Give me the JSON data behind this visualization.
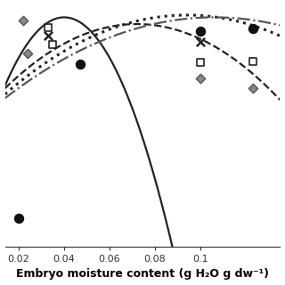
{
  "xlabel": "Embryo moisture content (g H₂O g dw⁻¹)",
  "xlim": [
    0.014,
    0.135
  ],
  "ylim": [
    -1.1,
    1.05
  ],
  "x_ticks": [
    0.02,
    0.04,
    0.06,
    0.08,
    0.1
  ],
  "x_tick_labels": [
    "0.02",
    "0.04",
    "0.06",
    "0.08",
    "0.1"
  ],
  "curves": [
    {
      "style": "-",
      "a": -900,
      "b": 0.04,
      "c": 0.94,
      "color": "#222222",
      "lw": 1.6
    },
    {
      "style": "--",
      "a": -170,
      "b": 0.072,
      "c": 0.88,
      "color": "#222222",
      "lw": 1.6
    },
    {
      "style": ":",
      "a": -110,
      "b": 0.094,
      "c": 0.96,
      "color": "#222222",
      "lw": 2.2
    },
    {
      "style": "-.",
      "a": -85,
      "b": 0.106,
      "c": 0.94,
      "color": "#555555",
      "lw": 1.6
    }
  ],
  "scatter": [
    {
      "marker": "s",
      "fc": "none",
      "ec": "#222222",
      "lw": 1.2,
      "s": 32,
      "x": [
        0.033,
        0.035,
        0.1,
        0.123
      ],
      "y": [
        0.85,
        0.7,
        0.54,
        0.55
      ]
    },
    {
      "marker": "D",
      "fc": "#888888",
      "ec": "#555555",
      "lw": 1.0,
      "s": 28,
      "x": [
        0.022,
        0.024,
        0.1,
        0.123
      ],
      "y": [
        0.91,
        0.62,
        0.4,
        0.31
      ]
    },
    {
      "marker": "x",
      "fc": "#222222",
      "ec": "#222222",
      "lw": 1.8,
      "s": 45,
      "x": [
        0.033,
        0.1
      ],
      "y": [
        0.78,
        0.72
      ]
    },
    {
      "marker": "o",
      "fc": "#111111",
      "ec": "#111111",
      "lw": 1.0,
      "s": 52,
      "x": [
        0.02,
        0.047,
        0.1,
        0.123
      ],
      "y": [
        -0.85,
        0.52,
        0.82,
        0.84
      ]
    }
  ]
}
